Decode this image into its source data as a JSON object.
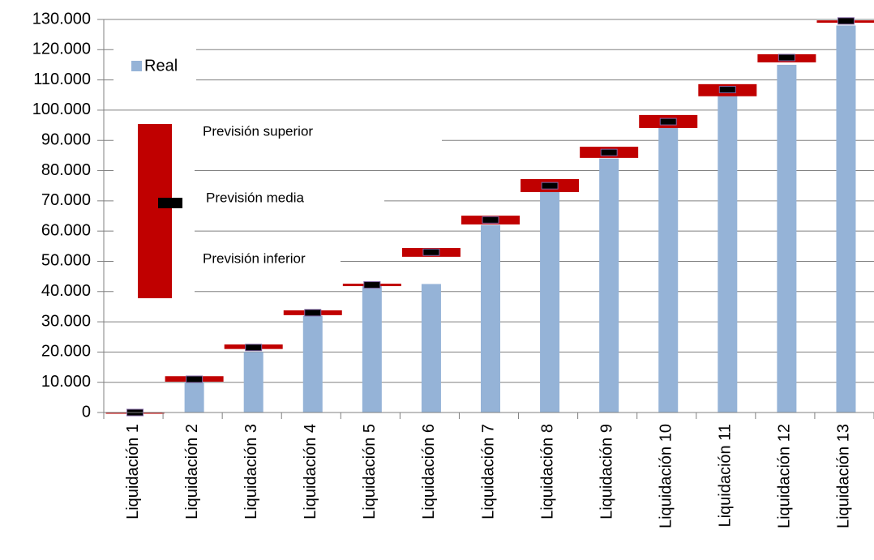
{
  "chart_data": {
    "type": "bar",
    "categories": [
      "Liquidación 1",
      "Liquidación 2",
      "Liquidación 3",
      "Liquidación 4",
      "Liquidación 5",
      "Liquidación 6",
      "Liquidación 7",
      "Liquidación 8",
      "Liquidación 9",
      "Liquidación 10",
      "Liquidación 11",
      "Liquidación 12",
      "Liquidación 13"
    ],
    "series": [
      {
        "name": "Real",
        "color": "#95b3d7",
        "values": [
          0,
          10000,
          20000,
          32000,
          42000,
          42500,
          62000,
          73000,
          84000,
          95000,
          105000,
          115000,
          128000
        ]
      },
      {
        "name": "Previsión superior",
        "color": "#c00000",
        "values": [
          0,
          12000,
          22500,
          33800,
          42600,
          54400,
          65100,
          77200,
          87900,
          98400,
          108600,
          118500,
          129700
        ]
      },
      {
        "name": "Previsión media",
        "color": "#000000",
        "values": [
          0,
          11000,
          21500,
          33000,
          42200,
          53000,
          63700,
          75000,
          86000,
          96200,
          106800,
          117400,
          129500
        ]
      },
      {
        "name": "Previsión inferior",
        "color": "#c00000",
        "values": [
          0,
          10200,
          21000,
          32200,
          41800,
          51500,
          62200,
          72900,
          84200,
          94100,
          104600,
          115800,
          128900
        ]
      }
    ],
    "ylim": [
      0,
      130000
    ],
    "yticks": [
      0,
      {
        "value": 10000,
        "label": "10.000"
      },
      {
        "value": 20000,
        "label": "20.000"
      },
      {
        "value": 30000,
        "label": "30.000"
      },
      {
        "value": 40000,
        "label": "40.000"
      },
      {
        "value": 50000,
        "label": "50.000"
      },
      {
        "value": 60000,
        "label": "60.000"
      },
      {
        "value": 70000,
        "label": "70.000"
      },
      {
        "value": 80000,
        "label": "80.000"
      },
      {
        "value": 90000,
        "label": "90.000"
      },
      {
        "value": 100000,
        "label": "100.000"
      },
      {
        "value": 110000,
        "label": "110.000"
      },
      {
        "value": 120000,
        "label": "120.000"
      },
      {
        "value": 130000,
        "label": "130.000"
      }
    ],
    "grid": true
  }
}
